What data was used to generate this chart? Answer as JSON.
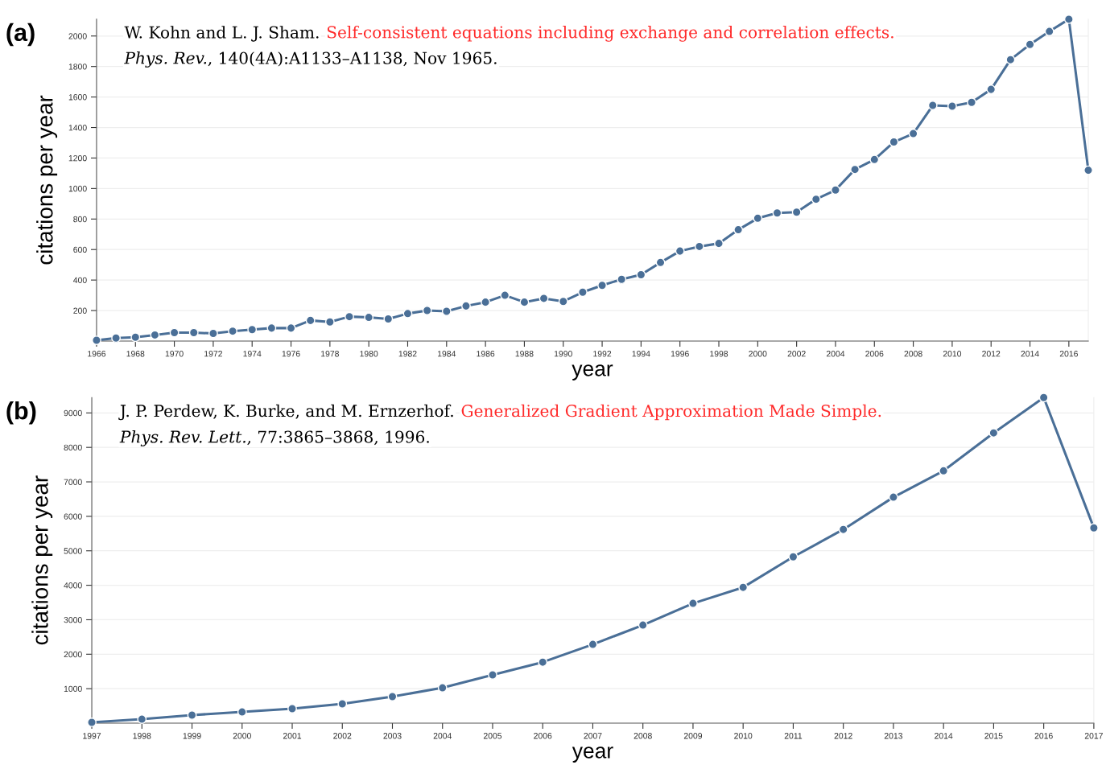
{
  "chart_data": [
    {
      "type": "line",
      "xlabel": "year",
      "ylabel": "citations per year",
      "annotations": [
        "(a)",
        "W. Kohn and L. J. Sham.",
        "Self-consistent equations including exchange and correlation effects.",
        "Phys. Rev.",
        ", 140(4A):A1133–A1138, Nov 1965."
      ],
      "x": [
        1966,
        1967,
        1968,
        1969,
        1970,
        1971,
        1972,
        1973,
        1974,
        1975,
        1976,
        1977,
        1978,
        1979,
        1980,
        1981,
        1982,
        1983,
        1984,
        1985,
        1986,
        1987,
        1988,
        1989,
        1990,
        1991,
        1992,
        1993,
        1994,
        1995,
        1996,
        1997,
        1998,
        1999,
        2000,
        2001,
        2002,
        2003,
        2004,
        2005,
        2006,
        2007,
        2008,
        2009,
        2010,
        2011,
        2012,
        2013,
        2014,
        2015,
        2016,
        2017
      ],
      "series": [
        {
          "color": "#4a6f97",
          "values": [
            5,
            20,
            25,
            40,
            55,
            55,
            50,
            65,
            75,
            85,
            85,
            135,
            125,
            160,
            155,
            145,
            180,
            200,
            195,
            230,
            255,
            300,
            255,
            280,
            260,
            320,
            365,
            405,
            435,
            515,
            590,
            620,
            640,
            730,
            805,
            840,
            845,
            930,
            990,
            1125,
            1190,
            1305,
            1360,
            1545,
            1540,
            1565,
            1650,
            1845,
            1945,
            2030,
            2110,
            1120
          ]
        }
      ],
      "xlim": [
        1966,
        2017
      ],
      "xticks": [
        1966,
        1968,
        1970,
        1972,
        1974,
        1976,
        1978,
        1980,
        1982,
        1984,
        1986,
        1988,
        1990,
        1992,
        1994,
        1996,
        1998,
        2000,
        2002,
        2004,
        2006,
        2008,
        2010,
        2012,
        2014,
        2016
      ],
      "ylim": [
        0,
        2110
      ],
      "yticks": [
        200,
        400,
        600,
        800,
        1000,
        1200,
        1400,
        1600,
        1800,
        2000
      ],
      "grid": "y",
      "marker": "circle",
      "line_style": "solid"
    },
    {
      "type": "line",
      "xlabel": "year",
      "ylabel": "citations per year",
      "annotations": [
        "(b)",
        "J. P. Perdew, K. Burke, and M. Ernzerhof.",
        "Generalized Gradient Approximation Made Simple.",
        "Phys. Rev. Lett.",
        ", 77:3865–3868, 1996."
      ],
      "x": [
        1997,
        1998,
        1999,
        2000,
        2001,
        2002,
        2003,
        2004,
        2005,
        2006,
        2007,
        2008,
        2009,
        2010,
        2011,
        2012,
        2013,
        2014,
        2015,
        2016,
        2017
      ],
      "series": [
        {
          "color": "#4a6f97",
          "values": [
            25,
            115,
            235,
            325,
            420,
            560,
            770,
            1025,
            1400,
            1770,
            2285,
            2845,
            3475,
            3940,
            4825,
            5620,
            6555,
            7320,
            8420,
            9445,
            5665
          ]
        }
      ],
      "xlim": [
        1997,
        2017
      ],
      "xticks": [
        1997,
        1998,
        1999,
        2000,
        2001,
        2002,
        2003,
        2004,
        2005,
        2006,
        2007,
        2008,
        2009,
        2010,
        2011,
        2012,
        2013,
        2014,
        2015,
        2016,
        2017
      ],
      "ylim": [
        0,
        9445
      ],
      "yticks": [
        1000,
        2000,
        3000,
        4000,
        5000,
        6000,
        7000,
        8000,
        9000
      ],
      "grid": "y",
      "marker": "circle",
      "line_style": "solid"
    }
  ]
}
